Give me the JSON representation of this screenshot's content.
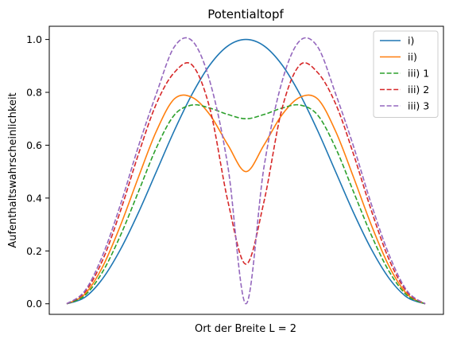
{
  "chart_data": {
    "type": "line",
    "title": "Potentialtopf",
    "xlabel": "Ort der Breite L = 2",
    "ylabel": "Aufenthaltswahrscheinlichkeit",
    "xlim": [
      0,
      2
    ],
    "ylim": [
      -0.04,
      1.05
    ],
    "x_ticks_shown": false,
    "y_ticks": [
      0.0,
      0.2,
      0.4,
      0.6,
      0.8,
      1.0
    ],
    "y_tick_labels": [
      "0.0",
      "0.2",
      "0.4",
      "0.6",
      "0.8",
      "1.0"
    ],
    "grid": false,
    "legend_position": "top-right",
    "x": [
      0,
      0.1,
      0.2,
      0.3,
      0.4,
      0.5,
      0.6,
      0.7,
      0.8,
      0.9,
      1.0,
      1.1,
      1.2,
      1.3,
      1.4,
      1.5,
      1.6,
      1.7,
      1.8,
      1.9,
      2.0
    ],
    "series": [
      {
        "name": "i)",
        "color": "#1f77b4",
        "dash": "solid",
        "values": [
          0,
          0.024,
          0.095,
          0.206,
          0.345,
          0.5,
          0.655,
          0.794,
          0.905,
          0.976,
          1.0,
          0.976,
          0.905,
          0.794,
          0.655,
          0.5,
          0.345,
          0.206,
          0.095,
          0.024,
          0
        ]
      },
      {
        "name": "ii)",
        "color": "#ff7f0e",
        "dash": "solid",
        "values": [
          0,
          0.036,
          0.14,
          0.297,
          0.479,
          0.653,
          0.775,
          0.781,
          0.714,
          0.6,
          0.5,
          0.6,
          0.714,
          0.781,
          0.775,
          0.653,
          0.479,
          0.297,
          0.14,
          0.036,
          0
        ]
      },
      {
        "name": "iii) 1",
        "color": "#2ca02c",
        "dash": "dashed",
        "values": [
          0,
          0.031,
          0.121,
          0.259,
          0.424,
          0.59,
          0.714,
          0.752,
          0.74,
          0.716,
          0.7,
          0.716,
          0.74,
          0.752,
          0.714,
          0.59,
          0.424,
          0.259,
          0.121,
          0.031,
          0
        ]
      },
      {
        "name": "iii) 2",
        "color": "#d62728",
        "dash": "dashed",
        "values": [
          0,
          0.043,
          0.165,
          0.352,
          0.566,
          0.757,
          0.875,
          0.903,
          0.735,
          0.385,
          0.15,
          0.385,
          0.735,
          0.903,
          0.875,
          0.757,
          0.566,
          0.352,
          0.165,
          0.043,
          0
        ]
      },
      {
        "name": "iii) 3",
        "color": "#9467bd",
        "dash": "dashed",
        "values": [
          0,
          0.048,
          0.183,
          0.376,
          0.596,
          0.795,
          0.972,
          0.995,
          0.838,
          0.515,
          0.0,
          0.515,
          0.838,
          0.995,
          0.972,
          0.795,
          0.596,
          0.376,
          0.183,
          0.048,
          0
        ]
      }
    ]
  }
}
